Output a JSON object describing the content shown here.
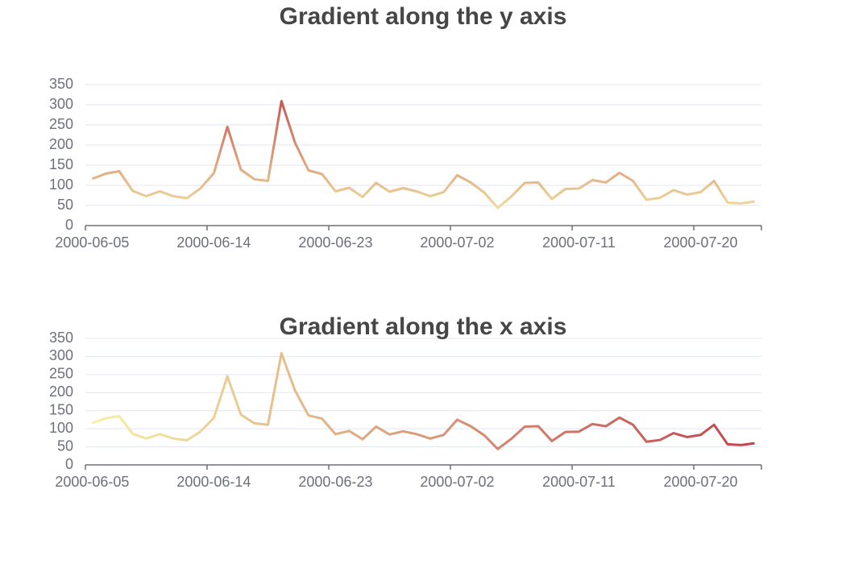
{
  "chart_data": [
    {
      "type": "line",
      "title": "Gradient along the y axis",
      "gradient": "y",
      "color_range": [
        "#f6efa6",
        "#bf444c"
      ],
      "categories": [
        "2000-06-05",
        null,
        null,
        null,
        null,
        null,
        null,
        null,
        null,
        "2000-06-14",
        null,
        null,
        null,
        null,
        null,
        null,
        null,
        null,
        "2000-06-23",
        null,
        null,
        null,
        null,
        null,
        null,
        null,
        null,
        "2000-07-02",
        null,
        null,
        null,
        null,
        null,
        null,
        null,
        null,
        "2000-07-11",
        null,
        null,
        null,
        null,
        null,
        null,
        null,
        null,
        "2000-07-20",
        null,
        null,
        null,
        null
      ],
      "values": [
        116,
        129,
        135,
        86,
        73,
        85,
        73,
        68,
        92,
        130,
        245,
        139,
        115,
        111,
        309,
        206,
        137,
        128,
        85,
        94,
        71,
        106,
        84,
        93,
        85,
        73,
        83,
        125,
        107,
        82,
        44,
        72,
        106,
        107,
        66,
        91,
        92,
        113,
        107,
        131,
        111,
        64,
        69,
        88,
        77,
        83,
        111,
        57,
        55,
        60
      ],
      "ylim": [
        0,
        350
      ],
      "yticks": [
        0,
        50,
        100,
        150,
        200,
        250,
        300,
        350
      ],
      "grid": true
    },
    {
      "type": "line",
      "title": "Gradient along the x axis",
      "gradient": "x",
      "color_range": [
        "#f6efa6",
        "#bf444c"
      ],
      "categories": [
        "2000-06-05",
        null,
        null,
        null,
        null,
        null,
        null,
        null,
        null,
        "2000-06-14",
        null,
        null,
        null,
        null,
        null,
        null,
        null,
        null,
        "2000-06-23",
        null,
        null,
        null,
        null,
        null,
        null,
        null,
        null,
        "2000-07-02",
        null,
        null,
        null,
        null,
        null,
        null,
        null,
        null,
        "2000-07-11",
        null,
        null,
        null,
        null,
        null,
        null,
        null,
        null,
        "2000-07-20",
        null,
        null,
        null,
        null
      ],
      "values": [
        116,
        129,
        135,
        86,
        73,
        85,
        73,
        68,
        92,
        130,
        245,
        139,
        115,
        111,
        309,
        206,
        137,
        128,
        85,
        94,
        71,
        106,
        84,
        93,
        85,
        73,
        83,
        125,
        107,
        82,
        44,
        72,
        106,
        107,
        66,
        91,
        92,
        113,
        107,
        131,
        111,
        64,
        69,
        88,
        77,
        83,
        111,
        57,
        55,
        60
      ],
      "ylim": [
        0,
        350
      ],
      "yticks": [
        0,
        50,
        100,
        150,
        200,
        250,
        300,
        350
      ],
      "grid": true
    }
  ]
}
